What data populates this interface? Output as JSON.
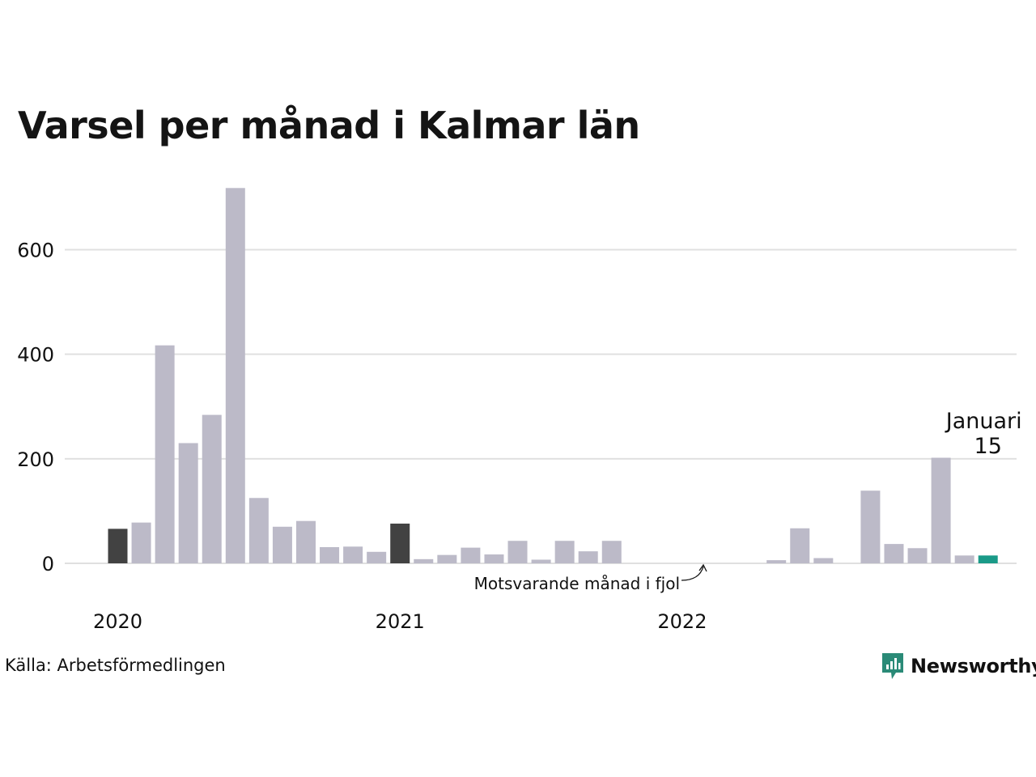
{
  "title": "Varsel per månad i Kalmar län",
  "source": "Källa: Arbetsförmedlingen",
  "brand": {
    "name": "Newsworthy",
    "color": "#2a8a77",
    "icon": "newsworthy-logo-icon"
  },
  "colors": {
    "bar": "#bcbac8",
    "previous_year": "#424242",
    "current": "#1a9a88",
    "grid": "#e0e0e0"
  },
  "chart_data": {
    "type": "bar",
    "title": "Varsel per månad i Kalmar län",
    "ylim": [
      0,
      720
    ],
    "yticks": [
      0,
      200,
      400,
      600
    ],
    "grid": true,
    "x_year_labels": [
      {
        "label": "2020",
        "index": 0
      },
      {
        "label": "2021",
        "index": 12
      },
      {
        "label": "2022",
        "index": 24
      }
    ],
    "values": [
      66,
      78,
      417,
      230,
      284,
      718,
      125,
      70,
      81,
      31,
      32,
      22,
      76,
      8,
      16,
      30,
      17,
      43,
      7,
      43,
      23,
      43,
      0,
      0,
      0,
      0,
      0,
      0,
      6,
      67,
      10,
      0,
      139,
      37,
      29,
      202,
      15,
      15
    ],
    "previous_year_indices": [
      0,
      12
    ],
    "highlight": {
      "index": 37,
      "label": "Januari",
      "value": "15"
    },
    "annotation": {
      "text": "Motsvarande månad i fjol",
      "index": 25
    }
  }
}
